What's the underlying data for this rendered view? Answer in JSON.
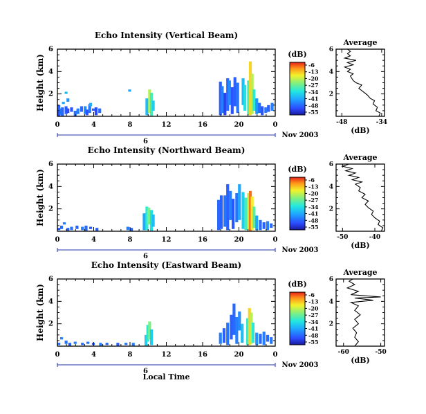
{
  "date_label": "Nov 2003",
  "local_time_label": "Local Time",
  "height_label": "Height (km)",
  "avg_title": "Average",
  "avg_unit": "(dB)",
  "colorbar": {
    "unit": "(dB)",
    "ticks": [
      "-6",
      "-13",
      "-20",
      "-27",
      "-34",
      "-41",
      "-48",
      "-55"
    ]
  },
  "chart_data": [
    {
      "type": "heatmap",
      "title": "Echo Intensity (Vertical Beam)",
      "ylabel": "Height (km)",
      "x_ticks": [
        "0",
        "4",
        "8",
        "12",
        "16",
        "20",
        "0"
      ],
      "y_ticks": [
        "2",
        "4",
        "6"
      ],
      "day_tick": "6",
      "xlim": [
        0,
        24
      ],
      "ylim": [
        0,
        6
      ],
      "color_unit": "dB",
      "color_range": [
        -55,
        -6
      ],
      "cells": [
        [
          0.0,
          0.0,
          0.4,
          -50
        ],
        [
          0.0,
          0.4,
          1.0,
          -47
        ],
        [
          0.2,
          0.1,
          0.7,
          -45
        ],
        [
          0.4,
          0.0,
          0.8,
          -46
        ],
        [
          0.8,
          0.2,
          0.9,
          -47
        ],
        [
          1.0,
          0.3,
          0.7,
          -49
        ],
        [
          1.4,
          0.4,
          0.8,
          -48
        ],
        [
          1.8,
          0.0,
          0.5,
          -45
        ],
        [
          2.1,
          0.2,
          0.7,
          -44
        ],
        [
          2.5,
          0.4,
          0.9,
          -46
        ],
        [
          2.9,
          0.2,
          0.9,
          -43
        ],
        [
          3.1,
          0.1,
          0.6,
          -48
        ],
        [
          3.4,
          0.3,
          1.1,
          -45
        ],
        [
          3.8,
          0.5,
          0.7,
          -47
        ],
        [
          4.1,
          0.1,
          0.8,
          -49
        ],
        [
          4.5,
          0.3,
          0.7,
          -46
        ],
        [
          0.5,
          1.1,
          1.3,
          -40
        ],
        [
          1.0,
          1.3,
          1.6,
          -42
        ],
        [
          0.8,
          2.0,
          2.2,
          -38
        ],
        [
          3.5,
          0.9,
          1.2,
          -39
        ],
        [
          7.8,
          2.2,
          2.4,
          -40
        ],
        [
          9.7,
          0.1,
          1.6,
          -38
        ],
        [
          10.0,
          0.3,
          2.4,
          -22
        ],
        [
          10.2,
          0.0,
          2.1,
          -30
        ],
        [
          10.4,
          0.5,
          1.4,
          -36
        ],
        [
          17.8,
          0.1,
          3.1,
          -47
        ],
        [
          18.0,
          0.3,
          2.7,
          -44
        ],
        [
          18.3,
          0.1,
          2.1,
          -50
        ],
        [
          18.6,
          0.5,
          3.4,
          -46
        ],
        [
          18.8,
          1.0,
          3.2,
          -43
        ],
        [
          19.1,
          0.2,
          2.6,
          -48
        ],
        [
          19.4,
          0.9,
          3.5,
          -47
        ],
        [
          19.7,
          0.3,
          3.0,
          -45
        ],
        [
          20.3,
          1.0,
          3.4,
          -38
        ],
        [
          20.5,
          0.5,
          2.8,
          -34
        ],
        [
          20.9,
          0.1,
          3.2,
          -30
        ],
        [
          21.1,
          0.1,
          4.9,
          -16
        ],
        [
          21.3,
          0.2,
          3.8,
          -22
        ],
        [
          21.5,
          0.5,
          2.4,
          -32
        ],
        [
          21.8,
          0.2,
          1.6,
          -42
        ],
        [
          22.1,
          0.3,
          1.2,
          -46
        ],
        [
          22.4,
          0.1,
          0.9,
          -48
        ],
        [
          22.8,
          0.3,
          0.8,
          -45
        ],
        [
          23.1,
          0.4,
          1.0,
          -47
        ],
        [
          23.5,
          0.5,
          1.2,
          -44
        ]
      ]
    },
    {
      "type": "heatmap",
      "title": "Echo Intensity (Northward Beam)",
      "ylabel": "Height (km)",
      "x_ticks": [
        "0",
        "4",
        "8",
        "12",
        "16",
        "20",
        "0"
      ],
      "y_ticks": [
        "2",
        "4",
        "6"
      ],
      "day_tick": "6",
      "xlim": [
        0,
        24
      ],
      "ylim": [
        0,
        6
      ],
      "color_unit": "dB",
      "color_range": [
        -55,
        -6
      ],
      "cells": [
        [
          0.0,
          0.1,
          0.3,
          -48
        ],
        [
          0.3,
          0.2,
          0.5,
          -46
        ],
        [
          0.6,
          0.6,
          0.8,
          -44
        ],
        [
          1.0,
          0.0,
          0.3,
          -47
        ],
        [
          1.4,
          0.1,
          0.4,
          -45
        ],
        [
          2.0,
          0.2,
          0.5,
          -47
        ],
        [
          2.6,
          0.1,
          0.4,
          -44
        ],
        [
          3.0,
          0.0,
          0.5,
          -46
        ],
        [
          3.5,
          0.2,
          0.4,
          -48
        ],
        [
          4.2,
          0.0,
          0.3,
          -47
        ],
        [
          7.6,
          0.1,
          0.4,
          -44
        ],
        [
          8.0,
          0.0,
          0.3,
          -46
        ],
        [
          9.4,
          0.1,
          1.6,
          -40
        ],
        [
          9.7,
          0.1,
          2.2,
          -32
        ],
        [
          9.9,
          0.6,
          2.1,
          -26
        ],
        [
          10.2,
          0.0,
          1.9,
          -34
        ],
        [
          10.4,
          0.4,
          1.5,
          -38
        ],
        [
          17.6,
          0.1,
          2.8,
          -46
        ],
        [
          17.9,
          0.2,
          3.2,
          -47
        ],
        [
          18.3,
          0.4,
          3.2,
          -45
        ],
        [
          18.6,
          0.1,
          4.2,
          -47
        ],
        [
          18.9,
          1.0,
          3.6,
          -44
        ],
        [
          19.2,
          0.2,
          2.9,
          -48
        ],
        [
          19.6,
          0.8,
          3.4,
          -45
        ],
        [
          19.9,
          1.0,
          4.2,
          -40
        ],
        [
          20.3,
          0.2,
          3.5,
          -36
        ],
        [
          20.6,
          0.1,
          3.0,
          -30
        ],
        [
          20.9,
          0.1,
          3.4,
          -22
        ],
        [
          21.1,
          0.0,
          3.6,
          -10
        ],
        [
          21.3,
          0.1,
          3.1,
          -18
        ],
        [
          21.5,
          0.3,
          2.2,
          -28
        ],
        [
          21.8,
          0.1,
          1.4,
          -40
        ],
        [
          22.2,
          0.1,
          1.0,
          -46
        ],
        [
          22.6,
          0.2,
          0.8,
          -47
        ],
        [
          23.0,
          0.1,
          0.9,
          -44
        ],
        [
          23.4,
          0.3,
          0.7,
          -46
        ]
      ]
    },
    {
      "type": "heatmap",
      "title": "Echo Intensity (Eastward Beam)",
      "ylabel": "Height (km)",
      "x_ticks": [
        "0",
        "4",
        "8",
        "12",
        "16",
        "20",
        "0"
      ],
      "y_ticks": [
        "2",
        "4",
        "6"
      ],
      "day_tick": "6",
      "xlim": [
        0,
        24
      ],
      "ylim": [
        0,
        6
      ],
      "color_unit": "dB",
      "color_range": [
        -55,
        -6
      ],
      "cells": [
        [
          0.0,
          0.1,
          0.3,
          -46
        ],
        [
          0.3,
          0.6,
          0.8,
          -44
        ],
        [
          0.8,
          0.2,
          0.5,
          -45
        ],
        [
          1.2,
          0.0,
          0.3,
          -47
        ],
        [
          1.8,
          0.2,
          0.4,
          -44
        ],
        [
          2.6,
          0.1,
          0.3,
          -46
        ],
        [
          3.2,
          0.2,
          0.4,
          -45
        ],
        [
          3.8,
          0.1,
          0.3,
          -47
        ],
        [
          4.6,
          0.0,
          0.3,
          -44
        ],
        [
          5.3,
          0.1,
          0.3,
          -46
        ],
        [
          6.5,
          0.0,
          0.3,
          -47
        ],
        [
          7.4,
          0.1,
          0.3,
          -45
        ],
        [
          8.2,
          0.0,
          0.3,
          -44
        ],
        [
          9.6,
          0.0,
          1.0,
          -36
        ],
        [
          9.8,
          0.4,
          1.9,
          -32
        ],
        [
          10.0,
          0.6,
          2.2,
          -26
        ],
        [
          10.2,
          0.1,
          1.5,
          -36
        ],
        [
          17.8,
          0.2,
          1.2,
          -44
        ],
        [
          18.2,
          0.3,
          1.6,
          -47
        ],
        [
          18.6,
          0.1,
          2.1,
          -45
        ],
        [
          19.0,
          0.6,
          2.8,
          -47
        ],
        [
          19.3,
          1.0,
          3.8,
          -46
        ],
        [
          19.6,
          0.2,
          2.6,
          -44
        ],
        [
          19.9,
          1.4,
          3.1,
          -43
        ],
        [
          20.2,
          0.3,
          2.0,
          -38
        ],
        [
          20.8,
          0.1,
          2.5,
          -32
        ],
        [
          21.0,
          0.1,
          3.4,
          -16
        ],
        [
          21.2,
          0.2,
          3.0,
          -22
        ],
        [
          21.4,
          0.3,
          2.1,
          -32
        ],
        [
          21.8,
          0.1,
          1.2,
          -42
        ],
        [
          22.2,
          0.2,
          1.1,
          -46
        ],
        [
          22.6,
          0.1,
          1.3,
          -44
        ],
        [
          23.0,
          0.4,
          1.0,
          -46
        ],
        [
          23.4,
          0.2,
          0.8,
          -45
        ]
      ]
    },
    {
      "type": "line",
      "title": "Average",
      "xlabel": "(dB)",
      "x_ticks": [
        "-48",
        "-34"
      ],
      "y_ticks": [
        "2",
        "4",
        "6"
      ],
      "xlim": [
        -50,
        -33
      ],
      "ylim": [
        0,
        6
      ],
      "points": [
        [
          -35,
          0.0
        ],
        [
          -34.5,
          0.3
        ],
        [
          -36,
          0.5
        ],
        [
          -35.5,
          0.8
        ],
        [
          -37,
          1.1
        ],
        [
          -36.5,
          1.4
        ],
        [
          -38,
          1.6
        ],
        [
          -39,
          1.9
        ],
        [
          -40.5,
          2.2
        ],
        [
          -42,
          2.5
        ],
        [
          -41,
          2.8
        ],
        [
          -43,
          3.0
        ],
        [
          -44,
          3.2
        ],
        [
          -44.5,
          3.4
        ],
        [
          -45,
          3.6
        ],
        [
          -44,
          3.8
        ],
        [
          -46,
          4.0
        ],
        [
          -45,
          4.2
        ],
        [
          -47,
          4.4
        ],
        [
          -44,
          4.6
        ],
        [
          -46,
          4.8
        ],
        [
          -43,
          5.0
        ],
        [
          -47,
          5.2
        ],
        [
          -45,
          5.4
        ],
        [
          -46,
          5.6
        ],
        [
          -45,
          5.8
        ],
        [
          -46,
          6.0
        ]
      ]
    },
    {
      "type": "line",
      "title": "Average",
      "xlabel": "(dB)",
      "x_ticks": [
        "-50",
        "-40"
      ],
      "y_ticks": [
        "2",
        "4",
        "6"
      ],
      "xlim": [
        -52,
        -37
      ],
      "ylim": [
        0,
        6
      ],
      "points": [
        [
          -38,
          0.0
        ],
        [
          -37.5,
          0.3
        ],
        [
          -39,
          0.6
        ],
        [
          -38.5,
          0.9
        ],
        [
          -40,
          1.2
        ],
        [
          -41,
          1.5
        ],
        [
          -40.5,
          1.8
        ],
        [
          -42,
          2.1
        ],
        [
          -43,
          2.4
        ],
        [
          -42,
          2.7
        ],
        [
          -44,
          3.0
        ],
        [
          -43,
          3.3
        ],
        [
          -45,
          3.6
        ],
        [
          -44.5,
          3.9
        ],
        [
          -46,
          4.2
        ],
        [
          -44,
          4.4
        ],
        [
          -47,
          4.6
        ],
        [
          -45,
          4.8
        ],
        [
          -48,
          5.0
        ],
        [
          -46,
          5.2
        ],
        [
          -49,
          5.4
        ],
        [
          -47,
          5.6
        ],
        [
          -50,
          5.8
        ],
        [
          -48,
          6.0
        ]
      ]
    },
    {
      "type": "line",
      "title": "Average",
      "xlabel": "(dB)",
      "x_ticks": [
        "-60",
        "-50"
      ],
      "y_ticks": [
        "2",
        "4",
        "6"
      ],
      "xlim": [
        -62,
        -49
      ],
      "ylim": [
        0,
        6
      ],
      "points": [
        [
          -57,
          0.0
        ],
        [
          -56,
          0.4
        ],
        [
          -57,
          0.8
        ],
        [
          -56.5,
          1.2
        ],
        [
          -57.5,
          1.6
        ],
        [
          -56,
          2.0
        ],
        [
          -57,
          2.4
        ],
        [
          -55.5,
          2.8
        ],
        [
          -57,
          3.2
        ],
        [
          -56,
          3.6
        ],
        [
          -58,
          3.9
        ],
        [
          -52,
          4.1
        ],
        [
          -57,
          4.3
        ],
        [
          -50,
          4.4
        ],
        [
          -58,
          4.6
        ],
        [
          -56,
          4.9
        ],
        [
          -59,
          5.2
        ],
        [
          -57,
          5.5
        ],
        [
          -58.5,
          5.8
        ],
        [
          -57.5,
          6.0
        ]
      ]
    }
  ]
}
